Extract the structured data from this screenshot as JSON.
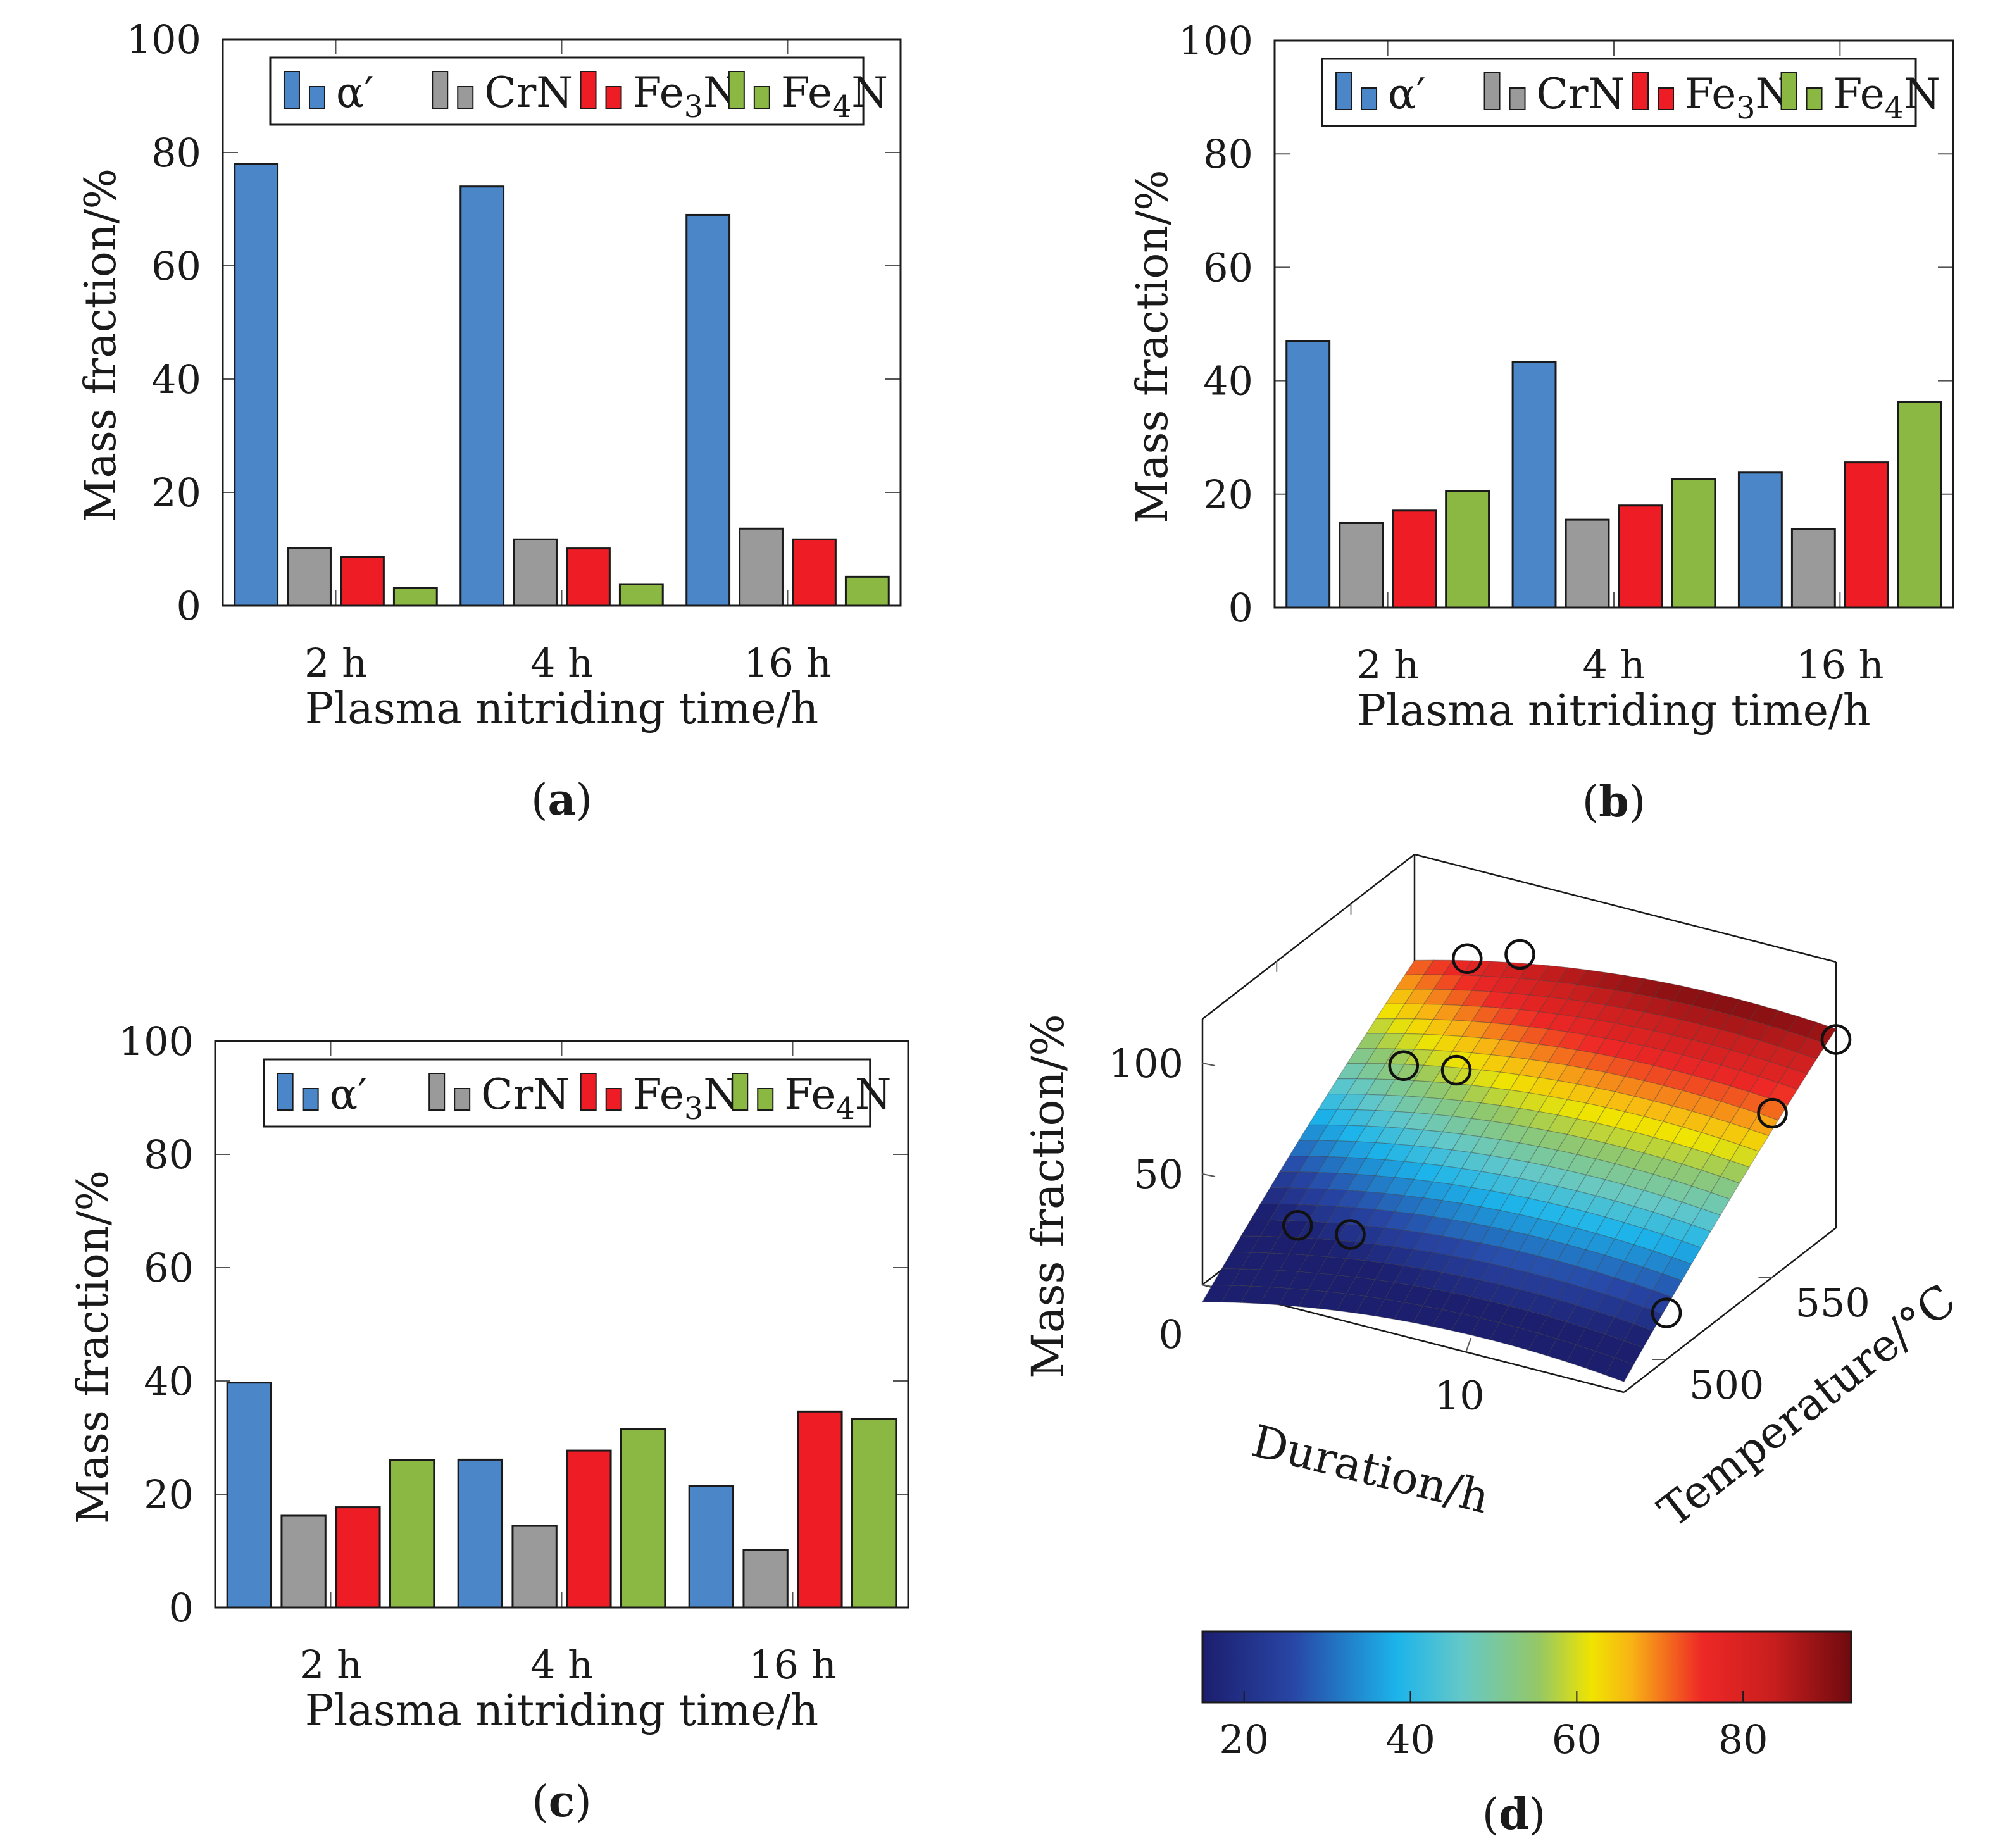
{
  "chart_data": [
    {
      "id": "a",
      "type": "bar",
      "panel_label": "a",
      "categories": [
        "2 h",
        "4 h",
        "16 h"
      ],
      "series": [
        {
          "name": "α′",
          "color": "#4a86c8",
          "values": [
            78,
            74,
            69
          ]
        },
        {
          "name": "CrN",
          "color": "#9a9a9a",
          "values": [
            10.2,
            11.7,
            13.6
          ]
        },
        {
          "name": "Fe₃N",
          "color": "#ee1c25",
          "values": [
            8.6,
            10.1,
            11.7
          ]
        },
        {
          "name": "Fe₄N",
          "color": "#8ab842",
          "values": [
            3.1,
            3.8,
            5.1
          ]
        }
      ],
      "title": "",
      "xlabel": "Plasma nitriding time/h",
      "ylabel": "Mass fraction/%",
      "ylim": [
        0,
        100
      ],
      "yticks": [
        "0",
        "20",
        "40",
        "60",
        "80",
        "100"
      ],
      "legend": "top"
    },
    {
      "id": "b",
      "type": "bar",
      "panel_label": "b",
      "categories": [
        "2 h",
        "4 h",
        "16 h"
      ],
      "series": [
        {
          "name": "α′",
          "color": "#4a86c8",
          "values": [
            47,
            43.3,
            23.8
          ]
        },
        {
          "name": "CrN",
          "color": "#9a9a9a",
          "values": [
            14.9,
            15.5,
            13.8
          ]
        },
        {
          "name": "Fe₃N",
          "color": "#ee1c25",
          "values": [
            17.1,
            18,
            25.6
          ]
        },
        {
          "name": "Fe₄N",
          "color": "#8ab842",
          "values": [
            20.5,
            22.7,
            36.3
          ]
        }
      ],
      "title": "",
      "xlabel": "Plasma nitriding time/h",
      "ylabel": "Mass fraction/%",
      "ylim": [
        0,
        100
      ],
      "yticks": [
        "0",
        "20",
        "40",
        "60",
        "80",
        "100"
      ],
      "legend": "top"
    },
    {
      "id": "c",
      "type": "bar",
      "panel_label": "c",
      "categories": [
        "2 h",
        "4 h",
        "16 h"
      ],
      "series": [
        {
          "name": "α′",
          "color": "#4a86c8",
          "values": [
            39.7,
            26.1,
            21.4
          ]
        },
        {
          "name": "CrN",
          "color": "#9a9a9a",
          "values": [
            16.2,
            14.4,
            10.2
          ]
        },
        {
          "name": "Fe₃N",
          "color": "#ee1c25",
          "values": [
            17.7,
            27.7,
            34.6
          ]
        },
        {
          "name": "Fe₄N",
          "color": "#8ab842",
          "values": [
            26,
            31.5,
            33.3
          ]
        }
      ],
      "title": "",
      "xlabel": "Plasma nitriding time/h",
      "ylabel": "Mass fraction/%",
      "ylim": [
        0,
        100
      ],
      "yticks": [
        "0",
        "20",
        "40",
        "60",
        "80",
        "100"
      ],
      "legend": "top"
    },
    {
      "id": "d",
      "type": "surface",
      "panel_label": "d",
      "title": "",
      "xlabel": "Duration/h",
      "ylabel": "Temperature/°C",
      "zlabel": "Mass fraction/%",
      "xticks": [
        "0",
        "10"
      ],
      "yticks": [
        "500",
        "550"
      ],
      "zticks": [
        "50",
        "100"
      ],
      "xlim": [
        0,
        16
      ],
      "ylim": [
        480,
        580
      ],
      "zlim": [
        0,
        120
      ],
      "colormap": "jet",
      "colorbar": {
        "range": [
          15,
          93
        ],
        "ticks": [
          "20",
          "40",
          "60",
          "80"
        ]
      },
      "points": [
        {
          "duration": 2,
          "temperature": 500,
          "mass_fraction": 18
        },
        {
          "duration": 4,
          "temperature": 500,
          "mass_fraction": 20
        },
        {
          "duration": 16,
          "temperature": 500,
          "mass_fraction": 21
        },
        {
          "duration": 2,
          "temperature": 550,
          "mass_fraction": 53
        },
        {
          "duration": 4,
          "temperature": 550,
          "mass_fraction": 57
        },
        {
          "duration": 16,
          "temperature": 550,
          "mass_fraction": 74
        },
        {
          "duration": 2,
          "temperature": 580,
          "mass_fraction": 79
        },
        {
          "duration": 4,
          "temperature": 580,
          "mass_fraction": 87
        },
        {
          "duration": 16,
          "temperature": 580,
          "mass_fraction": 85
        }
      ]
    }
  ]
}
